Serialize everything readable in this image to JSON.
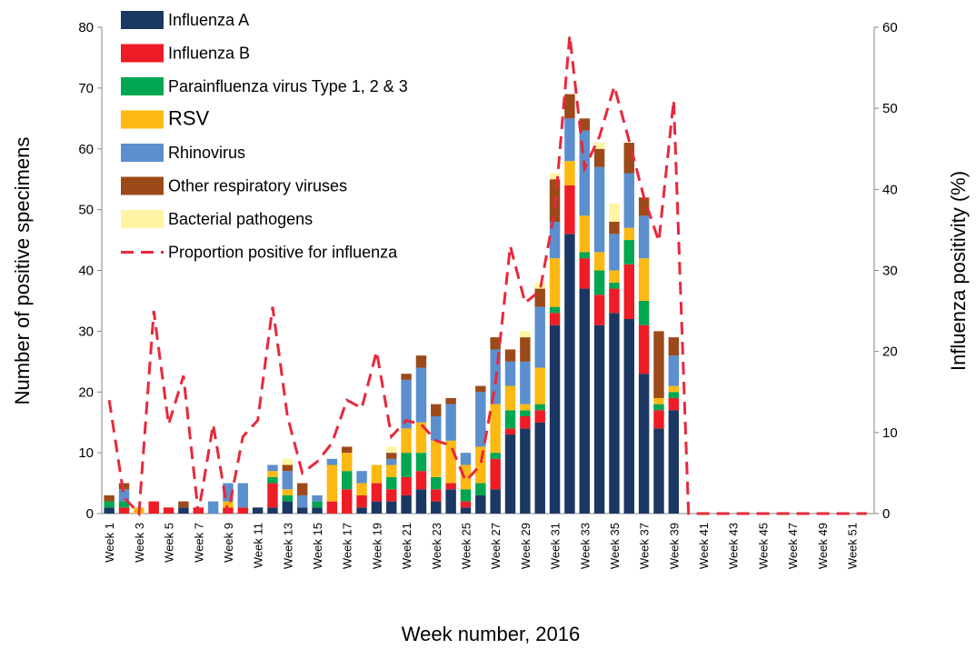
{
  "chart_data": {
    "type": "bar",
    "stacked": true,
    "x_label": "Week number, 2016",
    "y_label": "Number of positive specimens",
    "y2_label": "Influenza positivity (%)",
    "categories": [
      "Week 1",
      null,
      "Week 3",
      null,
      "Week 5",
      null,
      "Week 7",
      null,
      "Week 9",
      null,
      "Week 11",
      null,
      "Week 13",
      null,
      "Week 15",
      null,
      "Week 17",
      null,
      "Week 19",
      null,
      "Week 21",
      null,
      "Week 23",
      null,
      "Week 25",
      null,
      "Week 27",
      null,
      "Week 29",
      null,
      "Week 31",
      null,
      "Week 33",
      null,
      "Week 35",
      null,
      "Week 37",
      null,
      "Week 39",
      null,
      "Week 41",
      null,
      "Week 43",
      null,
      "Week 45",
      null,
      "Week 47",
      null,
      "Week 49",
      null,
      "Week 51",
      null
    ],
    "ylim": [
      0,
      80
    ],
    "yticks": [
      0,
      10,
      20,
      30,
      40,
      50,
      60,
      70,
      80
    ],
    "y2lim": [
      0,
      60
    ],
    "y2ticks": [
      0,
      10,
      20,
      30,
      40,
      50,
      60
    ],
    "legend": "top-left",
    "series": [
      {
        "name": "Influenza A",
        "color": "#1b3864",
        "values": [
          1,
          0,
          0,
          0,
          0,
          1,
          0,
          0,
          0,
          0,
          1,
          1,
          2,
          1,
          1,
          0,
          0,
          1,
          2,
          2,
          3,
          4,
          2,
          4,
          1,
          3,
          4,
          13,
          14,
          15,
          31,
          46,
          37,
          31,
          33,
          32,
          23,
          14,
          17,
          0,
          0,
          0,
          0,
          0,
          0,
          0,
          0,
          0,
          0,
          0,
          0,
          0
        ]
      },
      {
        "name": "Influenza B",
        "color": "#ee1c25",
        "values": [
          0,
          1,
          0,
          2,
          1,
          0,
          1,
          0,
          1,
          1,
          0,
          4,
          0,
          0,
          0,
          2,
          4,
          2,
          3,
          2,
          3,
          3,
          2,
          1,
          1,
          0,
          5,
          1,
          2,
          2,
          2,
          8,
          5,
          5,
          4,
          9,
          8,
          3,
          2,
          0,
          0,
          0,
          0,
          0,
          0,
          0,
          0,
          0,
          0,
          0,
          0,
          0
        ]
      },
      {
        "name": "Parainfluenza virus Type 1, 2 & 3",
        "color": "#00a650",
        "values": [
          1,
          1,
          0,
          0,
          0,
          0,
          0,
          0,
          0,
          0,
          0,
          1,
          1,
          0,
          1,
          0,
          3,
          0,
          0,
          2,
          4,
          3,
          2,
          0,
          2,
          2,
          1,
          3,
          1,
          1,
          1,
          0,
          1,
          4,
          1,
          4,
          4,
          1,
          1,
          0,
          0,
          0,
          0,
          0,
          0,
          0,
          0,
          0,
          0,
          0,
          0,
          0
        ]
      },
      {
        "name": "RSV",
        "color": "#fdb913",
        "values": [
          0,
          0,
          1,
          0,
          0,
          0,
          0,
          0,
          1,
          0,
          0,
          1,
          1,
          0,
          0,
          6,
          3,
          2,
          3,
          2,
          4,
          5,
          6,
          7,
          4,
          6,
          8,
          4,
          1,
          6,
          8,
          4,
          6,
          3,
          2,
          2,
          7,
          1,
          1,
          0,
          0,
          0,
          0,
          0,
          0,
          0,
          0,
          0,
          0,
          0,
          0,
          0
        ]
      },
      {
        "name": "Rhinovirus",
        "color": "#5b8fce",
        "values": [
          0,
          2,
          0,
          0,
          0,
          0,
          0,
          2,
          3,
          4,
          0,
          1,
          3,
          2,
          1,
          1,
          0,
          2,
          0,
          1,
          8,
          9,
          4,
          6,
          2,
          9,
          9,
          4,
          7,
          10,
          6,
          7,
          14,
          14,
          6,
          9,
          7,
          0,
          5,
          0,
          0,
          0,
          0,
          0,
          0,
          0,
          0,
          0,
          0,
          0,
          0,
          0
        ]
      },
      {
        "name": "Other respiratory viruses",
        "color": "#9c4a1a",
        "values": [
          1,
          1,
          0,
          0,
          0,
          1,
          0,
          0,
          0,
          0,
          0,
          0,
          1,
          2,
          0,
          0,
          1,
          0,
          0,
          1,
          1,
          2,
          2,
          1,
          0,
          1,
          2,
          2,
          4,
          3,
          7,
          4,
          2,
          3,
          2,
          5,
          3,
          11,
          3,
          0,
          0,
          0,
          0,
          0,
          0,
          0,
          0,
          0,
          0,
          0,
          0,
          0
        ]
      },
      {
        "name": "Bacterial pathogens",
        "color": "#fff4a3",
        "values": [
          0,
          0,
          0,
          0,
          0,
          0,
          0,
          0,
          0,
          0,
          0,
          0,
          1,
          0,
          0,
          0,
          0,
          0,
          0,
          1,
          0,
          0,
          0,
          0,
          0,
          0,
          0,
          0,
          1,
          1,
          1,
          0,
          0,
          1,
          3,
          0,
          0,
          0,
          0,
          0,
          0,
          0,
          0,
          0,
          0,
          0,
          0,
          0,
          0,
          0,
          0,
          0
        ]
      },
      {
        "name": "Proportion positive for influenza",
        "color": "#e8283c",
        "type": "line",
        "axis": "y2",
        "values": [
          14,
          2,
          0,
          25,
          11,
          17,
          0,
          11,
          0,
          9.5,
          11.5,
          25.5,
          12,
          5,
          6.4,
          8.7,
          14,
          13,
          20,
          9.5,
          11.5,
          11,
          9,
          8.4,
          4,
          6,
          16,
          33,
          26,
          27.5,
          37.5,
          59,
          42.6,
          46.5,
          52.7,
          46,
          39,
          33.6,
          51,
          0,
          0,
          0,
          0,
          0,
          0,
          0,
          0,
          0,
          0,
          0,
          0,
          0
        ]
      }
    ]
  }
}
